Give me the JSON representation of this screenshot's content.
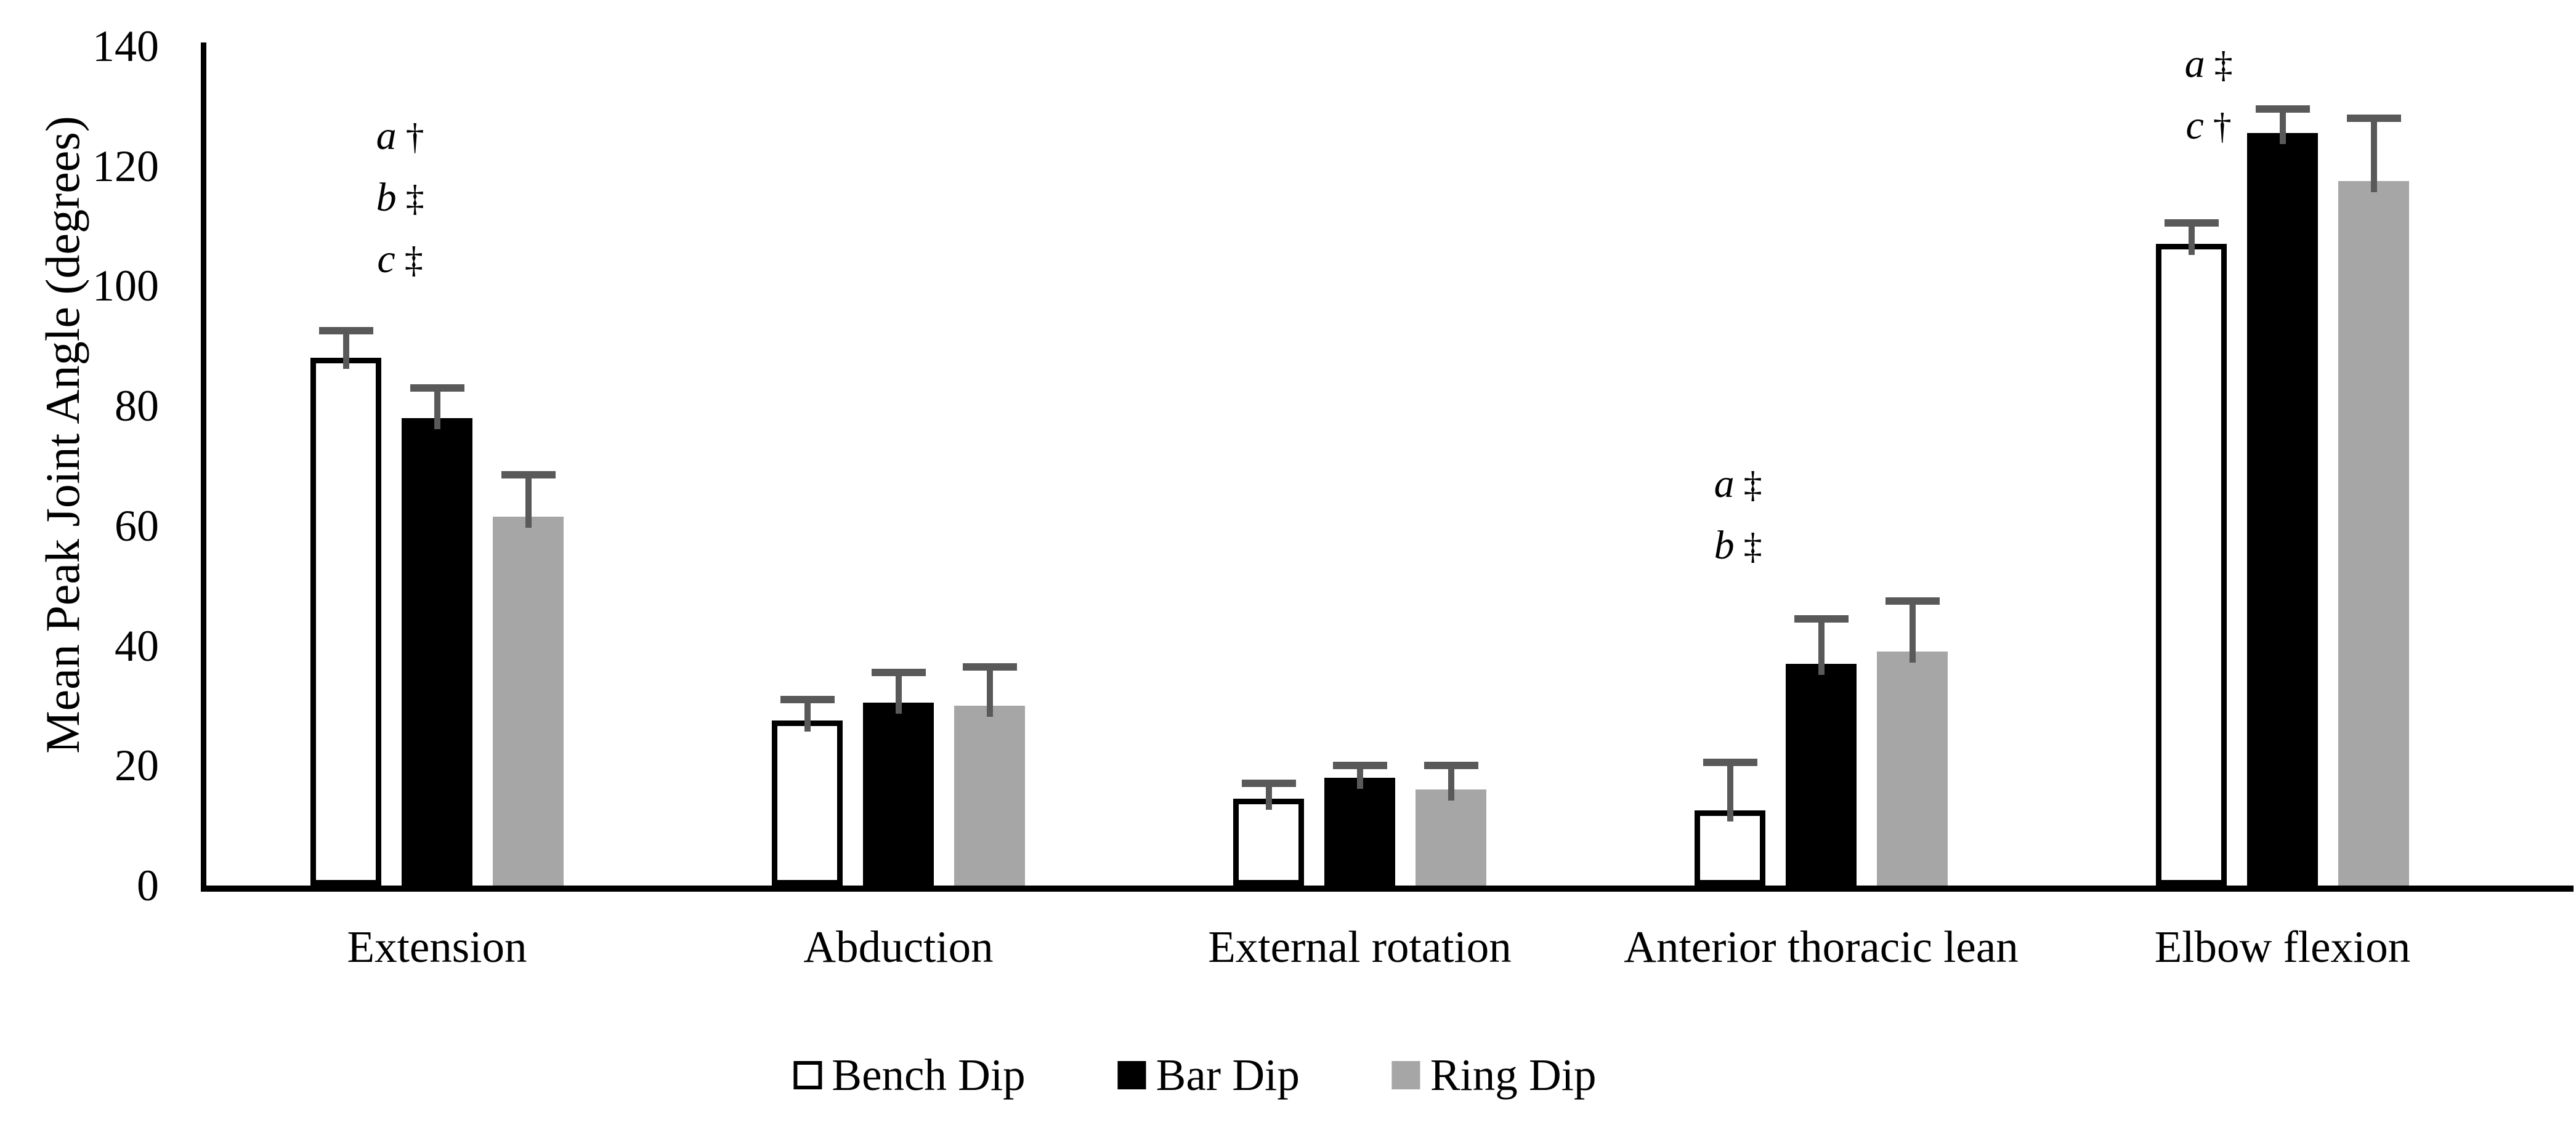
{
  "chart_data": {
    "type": "bar",
    "title": "",
    "ylabel": "Mean Peak Joint Angle (degrees)",
    "xlabel": "",
    "ylim": [
      0,
      140
    ],
    "yticks": [
      0,
      20,
      40,
      60,
      80,
      100,
      120,
      140
    ],
    "grid": false,
    "legend_position": "bottom",
    "categories": [
      "Extension",
      "Abduction",
      "External rotation",
      "Anterior thoracic lean",
      "Elbow flexion"
    ],
    "series": [
      {
        "name": "Bench Dip",
        "fill": "#FFFFFF",
        "border": "#000000",
        "values": [
          88,
          27.5,
          14.5,
          12.5,
          107
        ],
        "errors": [
          4.5,
          3.5,
          2.5,
          8,
          3.5
        ]
      },
      {
        "name": "Bar Dip",
        "fill": "#000000",
        "border": "#000000",
        "values": [
          78,
          30.5,
          18,
          37,
          125.5
        ],
        "errors": [
          5,
          5,
          2,
          7.5,
          4
        ]
      },
      {
        "name": "Ring Dip",
        "fill": "#A6A6A6",
        "border": "#A6A6A6",
        "values": [
          61.5,
          30,
          16,
          39,
          117.5
        ],
        "errors": [
          7,
          6.5,
          4,
          8.5,
          10.5
        ]
      }
    ],
    "error_bar_color": "#595959",
    "axis_color": "#000000",
    "annotations": [
      {
        "category_index": 0,
        "x_frac": 0.42,
        "first_line_value": 125,
        "lines": [
          {
            "letter": "a",
            "symbol": "†"
          },
          {
            "letter": "b",
            "symbol": "‡"
          },
          {
            "letter": "c",
            "symbol": "‡"
          }
        ]
      },
      {
        "category_index": 3,
        "x_frac": 0.32,
        "first_line_value": 67,
        "lines": [
          {
            "letter": "a",
            "symbol": "‡"
          },
          {
            "letter": "b",
            "symbol": "‡"
          }
        ]
      },
      {
        "category_index": 4,
        "x_frac": 0.34,
        "first_line_value": 137,
        "lines": [
          {
            "letter": "a",
            "symbol": "‡"
          },
          {
            "letter": "c",
            "symbol": "†"
          }
        ]
      }
    ]
  }
}
